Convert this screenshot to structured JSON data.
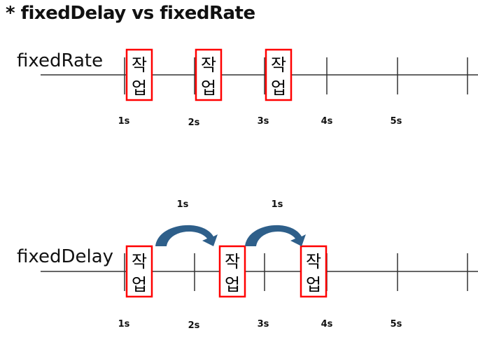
{
  "title": "* fixedDelay vs fixedRate",
  "rows": {
    "rate": {
      "label": "fixedRate",
      "tick_labels": [
        "1s",
        "2s",
        "3s",
        "4s",
        "5s"
      ],
      "tasks": [
        {
          "top": "작",
          "bottom": "업"
        },
        {
          "top": "작",
          "bottom": "업"
        },
        {
          "top": "작",
          "bottom": "업"
        }
      ]
    },
    "delay": {
      "label": "fixedDelay",
      "tick_labels": [
        "1s",
        "2s",
        "3s",
        "4s",
        "5s"
      ],
      "delay_labels": [
        "1s",
        "1s"
      ],
      "tasks": [
        {
          "top": "작",
          "bottom": "업"
        },
        {
          "top": "작",
          "bottom": "업"
        },
        {
          "top": "작",
          "bottom": "업"
        }
      ]
    }
  },
  "colors": {
    "task_border": "#ff0000",
    "arrow": "#2e5f8a",
    "line": "#333333"
  }
}
